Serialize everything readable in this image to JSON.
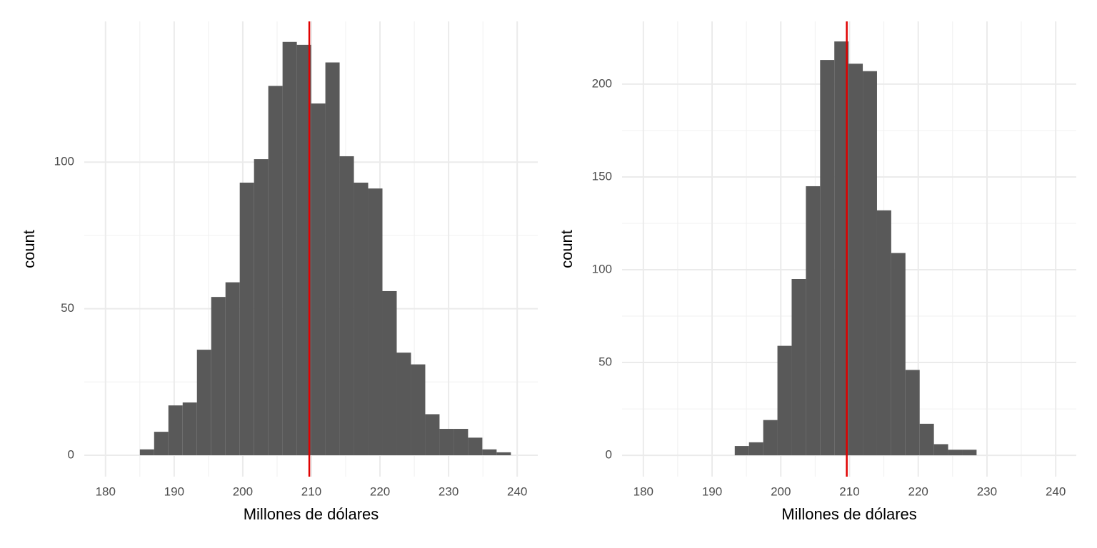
{
  "chart_data": [
    {
      "type": "histogram",
      "xlabel": "Millones de dólares",
      "ylabel": "count",
      "color": "#595959",
      "bins": [
        185.0,
        187.08,
        189.16,
        191.24,
        193.32,
        195.4,
        197.48,
        199.56,
        201.64,
        203.72,
        205.8,
        207.88,
        209.96,
        212.04,
        214.12,
        216.2,
        218.28,
        220.36,
        222.44,
        224.52,
        226.6,
        228.68,
        230.76,
        232.84,
        234.92,
        237.0,
        239.08
      ],
      "values": [
        2,
        8,
        17,
        18,
        36,
        54,
        59,
        93,
        101,
        126,
        141,
        140,
        120,
        134,
        102,
        93,
        91,
        56,
        35,
        31,
        14,
        9,
        9,
        6,
        2,
        1
      ],
      "xlim": [
        176.9,
        243.0
      ],
      "xticks": [
        180,
        190,
        200,
        210,
        220,
        230,
        240
      ],
      "ylim": [
        -7.3,
        148
      ],
      "yticks": [
        0,
        50,
        100
      ],
      "vline": 209.7,
      "vline_color": "#e00000",
      "grid": true
    },
    {
      "type": "histogram",
      "xlabel": "Millones de dólares",
      "ylabel": "count",
      "color": "#595959",
      "bins": [
        193.3,
        195.37,
        197.44,
        199.51,
        201.58,
        203.65,
        205.72,
        207.79,
        209.86,
        211.93,
        214.0,
        216.07,
        218.14,
        220.21,
        222.28,
        224.35,
        226.42,
        228.49
      ],
      "values": [
        5,
        7,
        19,
        59,
        95,
        145,
        213,
        223,
        211,
        207,
        132,
        109,
        46,
        17,
        6,
        3,
        3
      ],
      "xlim": [
        176.9,
        243.0
      ],
      "xticks": [
        180,
        190,
        200,
        210,
        220,
        230,
        240
      ],
      "ylim": [
        -11.5,
        233.8
      ],
      "yticks": [
        0,
        50,
        100,
        150,
        200
      ],
      "vline": 209.6,
      "vline_color": "#e00000",
      "grid": true
    }
  ]
}
